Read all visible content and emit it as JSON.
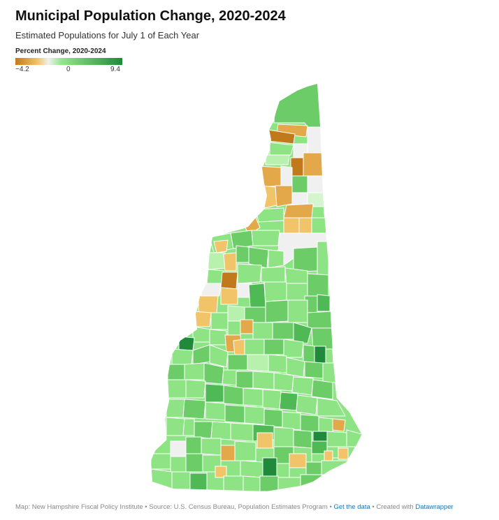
{
  "header": {
    "title": "Municipal Population Change, 2020-2024",
    "subtitle": "Estimated Populations for July 1 of Each Year"
  },
  "legend": {
    "title": "Percent Change, 2020-2024",
    "min_label": "−4.2",
    "mid_label": "0",
    "max_label": "9.4",
    "min_value": -4.2,
    "mid_value": 0,
    "max_value": 9.4,
    "colors": {
      "negative_strong": "#c17a1b",
      "negative_light": "#f2c46a",
      "neutral": "#f0f0f0",
      "positive_light": "#96e58c",
      "positive_strong": "#1f8a3a"
    }
  },
  "footer": {
    "source_text": "Map: New Hampshire Fiscal Policy Institute • Source: U.S. Census Bureau, Population Estimates Program • ",
    "get_data_link": "Get the data",
    "created_with_text": " • Created with ",
    "datawrapper_link": "Datawrapper"
  }
}
